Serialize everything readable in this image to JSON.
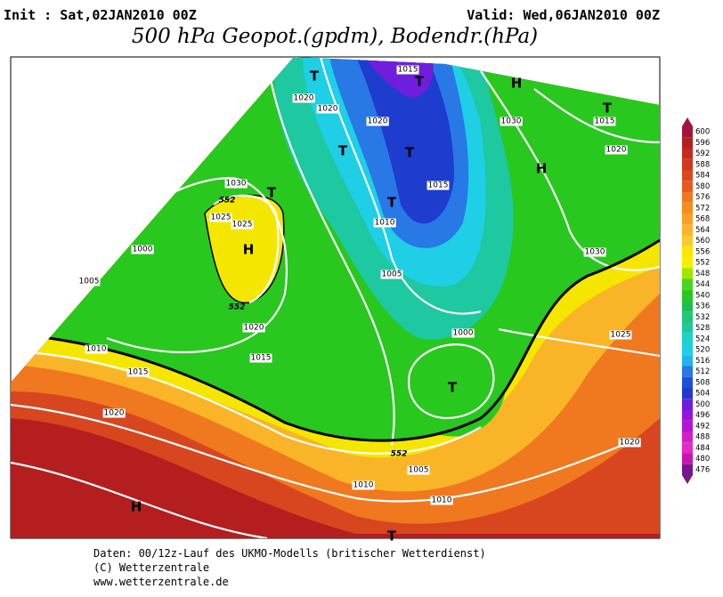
{
  "header": {
    "init": "Init : Sat,02JAN2010 00Z",
    "valid": "Valid: Wed,06JAN2010 00Z",
    "title": "500 hPa Geopot.(gpdm), Bodendr.(hPa)"
  },
  "map_labels": [
    "T",
    "T",
    "H",
    "T",
    "1015",
    "1020",
    "1020",
    "1020",
    "1030",
    "1015",
    "T",
    "T",
    "H",
    "1020",
    "1030",
    "T",
    "T",
    "1015",
    "1025",
    "1025",
    "H",
    "1000",
    "1010",
    "1030",
    "1005",
    "1005",
    "552",
    "1020",
    "1000",
    "1025",
    "1010",
    "1015",
    "1015",
    "T",
    "1020",
    "1005",
    "1010",
    "1010",
    "1020",
    "552",
    "H",
    "T",
    "552"
  ],
  "colorbar": [
    "600",
    "596",
    "592",
    "588",
    "584",
    "580",
    "576",
    "572",
    "568",
    "564",
    "560",
    "556",
    "552",
    "548",
    "544",
    "540",
    "536",
    "532",
    "528",
    "524",
    "520",
    "516",
    "512",
    "508",
    "504",
    "500",
    "496",
    "492",
    "488",
    "484",
    "480",
    "476"
  ],
  "footer": [
    "Daten: 00/12z-Lauf des UKMO-Modells (britischer Wetterdienst)",
    "(C) Wetterzentrale",
    "www.wetterzentrale.de"
  ]
}
